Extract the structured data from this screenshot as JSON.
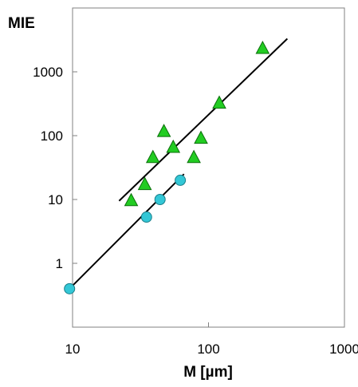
{
  "chart_data": {
    "type": "scatter",
    "ylabel": "MIE",
    "xlabel": "M [µm]",
    "x_scale": "log",
    "y_scale": "log",
    "xlim": [
      10,
      1000
    ],
    "ylim": [
      0.1,
      10000
    ],
    "x_ticks": [
      {
        "value": 10,
        "label": "10"
      },
      {
        "value": 100,
        "label": "100"
      },
      {
        "value": 1000,
        "label": "1000"
      }
    ],
    "y_ticks": [
      {
        "value": 1,
        "label": "1"
      },
      {
        "value": 10,
        "label": "10"
      },
      {
        "value": 100,
        "label": "100"
      },
      {
        "value": 1000,
        "label": "1000"
      }
    ],
    "grid": false,
    "series": [
      {
        "marker": "triangle",
        "color": "#22cc22",
        "points": [
          {
            "x": 27,
            "y": 9.5
          },
          {
            "x": 34,
            "y": 17
          },
          {
            "x": 39,
            "y": 45
          },
          {
            "x": 47,
            "y": 115
          },
          {
            "x": 55,
            "y": 65
          },
          {
            "x": 78,
            "y": 45
          },
          {
            "x": 88,
            "y": 90
          },
          {
            "x": 120,
            "y": 320
          },
          {
            "x": 250,
            "y": 2300
          }
        ],
        "fit_line": {
          "x": [
            22,
            380
          ],
          "y": [
            9.5,
            3300
          ]
        }
      },
      {
        "marker": "circle",
        "color": "#33c7d6",
        "points": [
          {
            "x": 9.5,
            "y": 0.4
          },
          {
            "x": 35,
            "y": 5.3
          },
          {
            "x": 44,
            "y": 10
          },
          {
            "x": 62,
            "y": 20
          }
        ],
        "fit_line": {
          "x": [
            9.5,
            66
          ],
          "y": [
            0.4,
            25
          ]
        }
      }
    ]
  }
}
